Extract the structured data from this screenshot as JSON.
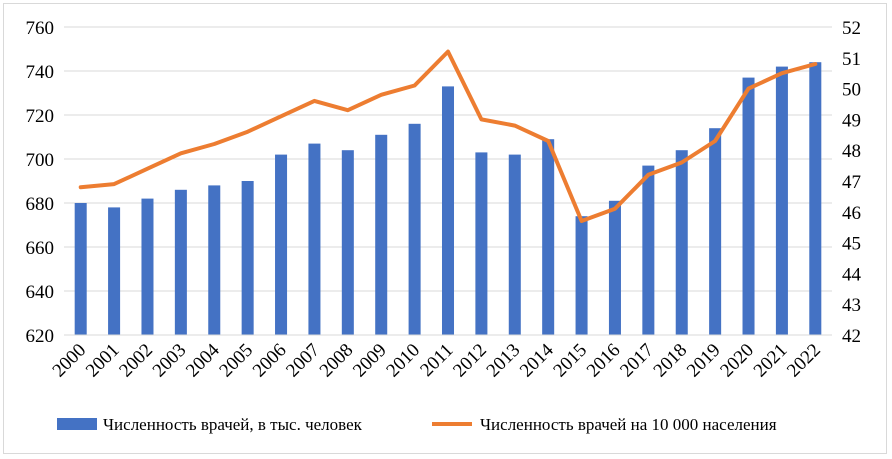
{
  "chart_data": {
    "type": "bar-line-combo",
    "categories": [
      "2000",
      "2001",
      "2002",
      "2003",
      "2004",
      "2005",
      "2006",
      "2007",
      "2008",
      "2009",
      "2010",
      "2011",
      "2012",
      "2013",
      "2014",
      "2015",
      "2016",
      "2017",
      "2018",
      "2019",
      "2020",
      "2021",
      "2022"
    ],
    "series": [
      {
        "name": "Численность врачей, в тыс. человек",
        "type": "bar",
        "axis": "left",
        "color": "#4472C4",
        "values": [
          680,
          678,
          682,
          686,
          688,
          690,
          702,
          707,
          704,
          711,
          716,
          733,
          703,
          702,
          709,
          674,
          681,
          697,
          704,
          714,
          737,
          742,
          744
        ]
      },
      {
        "name": "Численность врачей на 10 000 населения",
        "type": "line",
        "axis": "right",
        "color": "#ED7D31",
        "values": [
          46.8,
          46.9,
          47.4,
          47.9,
          48.2,
          48.6,
          49.1,
          49.6,
          49.3,
          49.8,
          50.1,
          51.2,
          49.0,
          48.8,
          48.3,
          45.7,
          46.1,
          47.2,
          47.6,
          48.3,
          50.0,
          50.5,
          50.8
        ]
      }
    ],
    "y_left": {
      "min": 620,
      "max": 760,
      "step": 20,
      "ticks": [
        "620",
        "640",
        "660",
        "680",
        "700",
        "720",
        "740",
        "760"
      ]
    },
    "y_right": {
      "min": 42,
      "max": 52,
      "step": 1,
      "ticks": [
        "42",
        "43",
        "44",
        "45",
        "46",
        "47",
        "48",
        "49",
        "50",
        "51",
        "52"
      ]
    },
    "grid": true,
    "legend_position": "bottom"
  }
}
